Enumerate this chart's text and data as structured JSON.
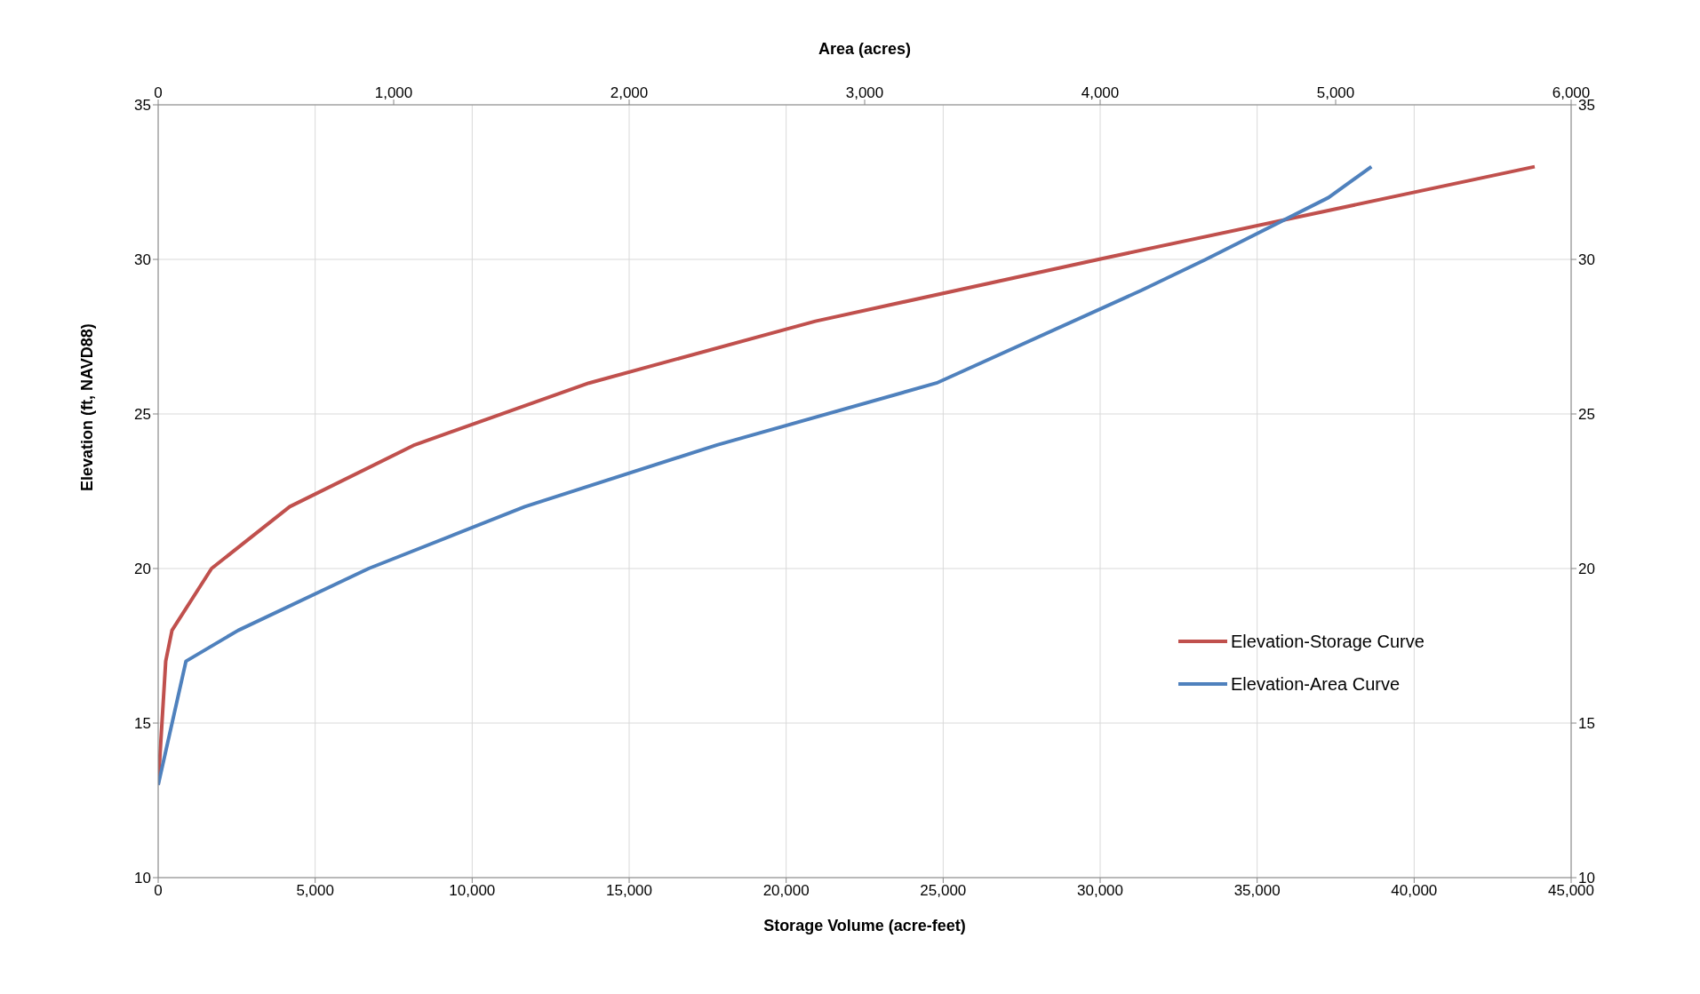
{
  "chart_data": {
    "type": "line",
    "xlabel": "Storage Volume (acre-feet)",
    "x2label": "Area (acres)",
    "ylabel": "Elevation (ft, NAVD88)",
    "xlim": [
      0,
      45000
    ],
    "xticks": [
      {
        "value": 0,
        "label": "0"
      },
      {
        "value": 5000,
        "label": "5,000"
      },
      {
        "value": 10000,
        "label": "10,000"
      },
      {
        "value": 15000,
        "label": "15,000"
      },
      {
        "value": 20000,
        "label": "20,000"
      },
      {
        "value": 25000,
        "label": "25,000"
      },
      {
        "value": 30000,
        "label": "30,000"
      },
      {
        "value": 35000,
        "label": "35,000"
      },
      {
        "value": 40000,
        "label": "40,000"
      },
      {
        "value": 45000,
        "label": "45,000"
      }
    ],
    "x2lim": [
      0,
      6000
    ],
    "x2ticks": [
      {
        "value": 0,
        "label": "0"
      },
      {
        "value": 1000,
        "label": "1,000"
      },
      {
        "value": 2000,
        "label": "2,000"
      },
      {
        "value": 3000,
        "label": "3,000"
      },
      {
        "value": 4000,
        "label": "4,000"
      },
      {
        "value": 5000,
        "label": "5,000"
      },
      {
        "value": 6000,
        "label": "6,000"
      }
    ],
    "ylim": [
      10,
      35
    ],
    "yticks": [
      10,
      15,
      20,
      25,
      30,
      35
    ],
    "y2lim": [
      10,
      35
    ],
    "y2ticks": [
      10,
      15,
      20,
      25,
      30,
      35
    ],
    "grid": true,
    "legend": "right",
    "marker": "none",
    "line_style": "solid",
    "series": [
      {
        "name": "Elevation-Storage Curve",
        "color": "#c0504d",
        "x": [
          0,
          240,
          440,
          1700,
          4190,
          8170,
          13720,
          20930,
          29950,
          43840
        ],
        "values": [
          13,
          17,
          18,
          20,
          22,
          24,
          26,
          28,
          30,
          33
        ]
      },
      {
        "name": "Elevation-Area Curve",
        "color": "#4f81bd",
        "axis": "x2",
        "x": [
          0,
          118,
          340,
          894,
          1557,
          2374,
          3305,
          4176,
          4449,
          4970,
          5152
        ],
        "values": [
          13,
          17,
          18,
          20,
          22,
          24,
          26,
          29,
          30,
          32,
          33
        ]
      }
    ]
  }
}
